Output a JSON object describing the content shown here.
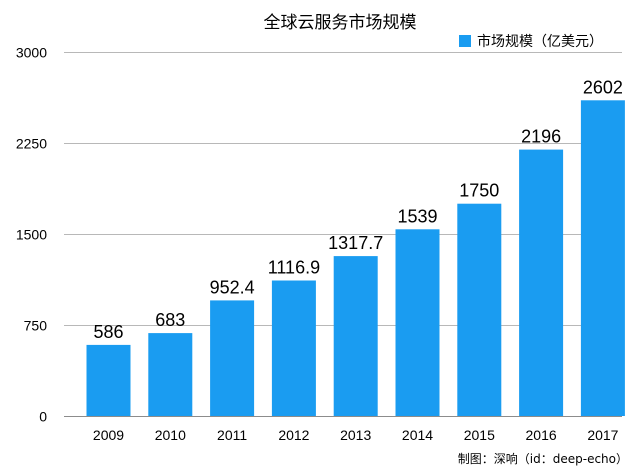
{
  "chart_data": {
    "type": "bar",
    "title": "全球云服务市场规模",
    "categories": [
      "2009",
      "2010",
      "2011",
      "2012",
      "2013",
      "2014",
      "2015",
      "2016",
      "2017"
    ],
    "series": [
      {
        "name": "市场规模（亿美元）",
        "values": [
          586,
          683,
          952.4,
          1116.9,
          1317.7,
          1539,
          1750,
          2196,
          2602
        ],
        "labels": [
          "586",
          "683",
          "952.4",
          "1116.9",
          "1317.7",
          "1539",
          "1750",
          "2196",
          "2602"
        ],
        "color": "#1a9cf1"
      }
    ],
    "ylim": [
      0,
      3000
    ],
    "yticks": [
      0,
      750,
      1500,
      2250,
      3000
    ],
    "ytick_labels": [
      "0",
      "750",
      "1500",
      "2250",
      "3000"
    ],
    "grid": true,
    "legend_position": "top-right",
    "xlabel": "",
    "ylabel": ""
  },
  "credit": "制图：深响（id：deep-echo）",
  "colors": {
    "bar": "#1a9cf1",
    "grid": "#b8b8b8",
    "axis": "#8c8c8c",
    "text": "#000000"
  }
}
